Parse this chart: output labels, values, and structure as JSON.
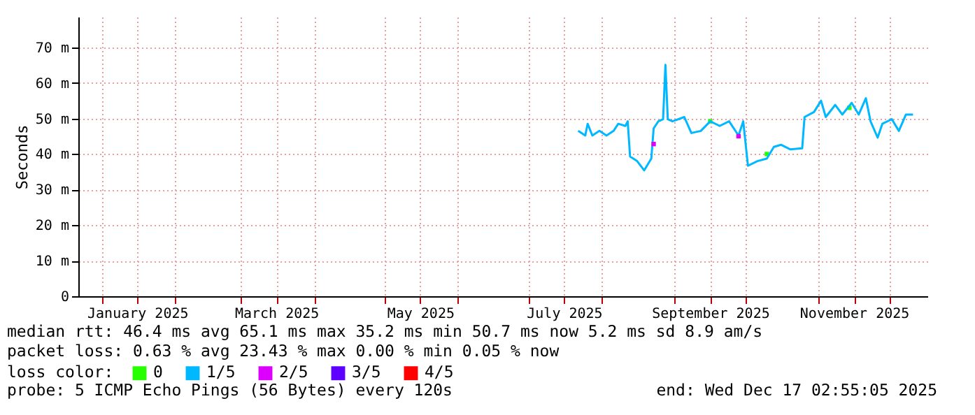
{
  "chart_data": {
    "type": "line",
    "ylabel": "Seconds",
    "xlim": [
      "2024-12-22",
      "2025-12-17T02:55"
    ],
    "xticks": [
      {
        "value": "2025-01-01",
        "label": null
      },
      {
        "value": "2025-01-16",
        "label": "January 2025"
      },
      {
        "value": "2025-02-01",
        "label": null
      },
      {
        "value": "2025-03-01",
        "label": null
      },
      {
        "value": "2025-03-16",
        "label": "March 2025"
      },
      {
        "value": "2025-04-01",
        "label": null
      },
      {
        "value": "2025-05-01",
        "label": null
      },
      {
        "value": "2025-05-16",
        "label": "May 2025"
      },
      {
        "value": "2025-06-01",
        "label": null
      },
      {
        "value": "2025-07-01",
        "label": null
      },
      {
        "value": "2025-07-16",
        "label": "July 2025"
      },
      {
        "value": "2025-08-01",
        "label": null
      },
      {
        "value": "2025-09-01",
        "label": null
      },
      {
        "value": "2025-09-16",
        "label": "September 2025"
      },
      {
        "value": "2025-10-01",
        "label": null
      },
      {
        "value": "2025-11-01",
        "label": null
      },
      {
        "value": "2025-11-16",
        "label": "November 2025"
      },
      {
        "value": "2025-12-01",
        "label": null
      }
    ],
    "ylim": [
      0,
      78.6
    ],
    "yticks": [
      0,
      {
        "value": 10,
        "label": "10 m"
      },
      {
        "value": 20,
        "label": "20 m"
      },
      {
        "value": 30,
        "label": "30 m"
      },
      {
        "value": 40,
        "label": "40 m"
      },
      {
        "value": 50,
        "label": "50 m"
      },
      {
        "value": 60,
        "label": "60 m"
      },
      {
        "value": 70,
        "label": "70 m"
      }
    ],
    "grid": true,
    "legend": "bottom",
    "legend_title": "loss color:",
    "series": [
      {
        "name": "0",
        "type": "scatter",
        "color": "#26ff00",
        "x": [
          "2025-09-16",
          "2025-10-10",
          "2025-11-14"
        ],
        "values": [
          49.2,
          40.0,
          53.0
        ]
      },
      {
        "name": "1/5",
        "color": "#00b8ff",
        "x": [
          "2025-07-22",
          "2025-07-25",
          "2025-07-26",
          "2025-07-28",
          "2025-07-31",
          "2025-08-03",
          "2025-08-06",
          "2025-08-08",
          "2025-08-11",
          "2025-08-12",
          "2025-08-13",
          "2025-08-16",
          "2025-08-19",
          "2025-08-22",
          "2025-08-23",
          "2025-08-25",
          "2025-08-27",
          "2025-08-28",
          "2025-08-29",
          "2025-08-31",
          "2025-09-05",
          "2025-09-08",
          "2025-09-12",
          "2025-09-16",
          "2025-09-20",
          "2025-09-24",
          "2025-09-28",
          "2025-09-30",
          "2025-10-02",
          "2025-10-06",
          "2025-10-10",
          "2025-10-13",
          "2025-10-16",
          "2025-10-20",
          "2025-10-25",
          "2025-10-26",
          "2025-10-30",
          "2025-11-02",
          "2025-11-04",
          "2025-11-08",
          "2025-11-11",
          "2025-11-15",
          "2025-11-18",
          "2025-11-21",
          "2025-11-23",
          "2025-11-26",
          "2025-11-28",
          "2025-12-02",
          "2025-12-05",
          "2025-12-08",
          "2025-12-11"
        ],
        "values": [
          46.5,
          45.2,
          48.5,
          45.2,
          46.5,
          45.2,
          46.5,
          48.5,
          47.9,
          49.2,
          39.3,
          38.0,
          35.4,
          38.7,
          47.2,
          49.2,
          49.8,
          65.1,
          49.8,
          49.2,
          50.4,
          45.9,
          46.5,
          49.2,
          47.9,
          49.2,
          45.2,
          49.2,
          36.7,
          38.0,
          38.7,
          42.0,
          42.6,
          41.3,
          41.6,
          50.4,
          51.8,
          55.0,
          50.4,
          53.8,
          51.1,
          54.4,
          51.1,
          55.7,
          49.2,
          44.6,
          48.5,
          49.8,
          46.5,
          51.1,
          51.1
        ]
      },
      {
        "name": "2/5",
        "type": "scatter",
        "color": "#dd00ff",
        "x": [
          "2025-08-23",
          "2025-09-28"
        ],
        "values": [
          42.8,
          45.0
        ]
      },
      {
        "name": "3/5",
        "color": "#5e00ff"
      },
      {
        "name": "4/5",
        "color": "#ff0000"
      }
    ],
    "annotations": [
      "median rtt:  46.4 ms avg  65.1 ms max  35.2 ms min  50.7 ms now  5.2 ms sd  8.9   am/s",
      "packet loss: 0.63 % avg  23.43 % max  0.00 % min  0.05 % now",
      "probe:       5 ICMP Echo Pings (56 Bytes) every 120s",
      "end: Wed Dec 17 02:55:05 2025"
    ]
  }
}
